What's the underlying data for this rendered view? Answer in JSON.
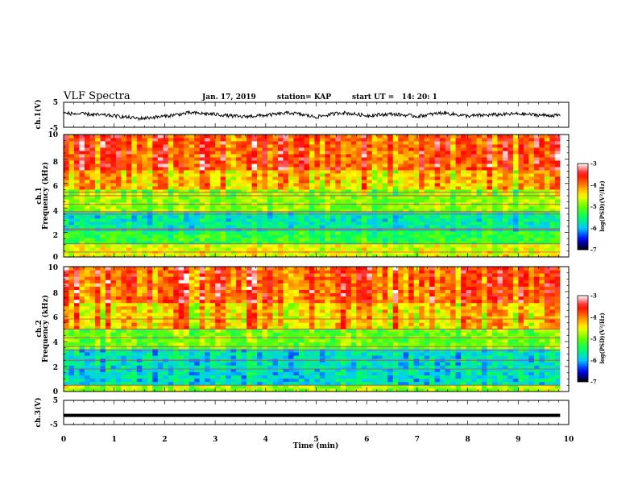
{
  "header": {
    "title": "VLF Spectra",
    "date": "Jan. 17, 2019",
    "station": "station= KAP",
    "start": "start UT =   14: 20: 1"
  },
  "chart_data": [
    {
      "type": "line",
      "panel": "ch1-waveform",
      "ylabel": "ch.1(V)",
      "ylim": [
        -5,
        5
      ],
      "xlim": [
        0,
        9.83
      ],
      "yticks": [
        "5",
        "-5"
      ],
      "x": [
        0,
        0.5,
        1.0,
        1.5,
        2.0,
        2.5,
        3.0,
        3.5,
        4.0,
        4.5,
        5.0,
        5.5,
        6.0,
        6.5,
        7.0,
        7.5,
        8.0,
        8.5,
        9.0,
        9.5,
        9.8
      ],
      "y": [
        0.6,
        0.2,
        -0.4,
        -1.5,
        -0.6,
        0.8,
        0.2,
        -0.8,
        -0.2,
        0.8,
        -0.9,
        0.9,
        -0.3,
        0.3,
        -0.6,
        0.8,
        -0.5,
        0.0,
        0.4,
        -0.2,
        -0.3
      ]
    },
    {
      "type": "heatmap",
      "panel": "ch1-spectrogram",
      "ylabel": "ch.1\nFrequency (kHz)",
      "ylim": [
        0,
        10
      ],
      "xlim": [
        0,
        9.83
      ],
      "yticks": [
        "0",
        "2",
        "4",
        "6",
        "8",
        "10"
      ],
      "colorbar": {
        "label": "log(PSD)(V²/Hz)",
        "range": [
          -7,
          -3
        ],
        "ticks": [
          "-3",
          "-4",
          "-5",
          "-6",
          "-7"
        ]
      },
      "bands_kHz": [
        {
          "from": 0,
          "to": 1.0,
          "level": -4.6
        },
        {
          "from": 1.0,
          "to": 2.2,
          "level": -5.3
        },
        {
          "from": 2.2,
          "to": 3.7,
          "level": -5.7
        },
        {
          "from": 3.7,
          "to": 5.5,
          "level": -4.9
        },
        {
          "from": 5.5,
          "to": 7.0,
          "level": -4.3
        },
        {
          "from": 7.0,
          "to": 10.0,
          "level": -3.8
        }
      ],
      "lines_kHz": [
        0.4,
        1.1,
        2.2,
        2.3,
        3.5,
        3.7,
        4.3,
        5.0,
        5.3
      ]
    },
    {
      "type": "heatmap",
      "panel": "ch2-spectrogram",
      "ylabel": "ch.2\nFrequency (kHz)",
      "ylim": [
        0,
        10
      ],
      "xlim": [
        0,
        9.83
      ],
      "yticks": [
        "0",
        "2",
        "4",
        "6",
        "8",
        "10"
      ],
      "colorbar": {
        "label": "log(PSD)(V²/Hz)",
        "range": [
          -7,
          -3
        ],
        "ticks": [
          "-3",
          "-4",
          "-5",
          "-6",
          "-7"
        ]
      },
      "bands_kHz": [
        {
          "from": 0,
          "to": 0.5,
          "level": -4.8
        },
        {
          "from": 0.5,
          "to": 3.5,
          "level": -5.8
        },
        {
          "from": 3.5,
          "to": 5.0,
          "level": -5.0
        },
        {
          "from": 5.0,
          "to": 7.0,
          "level": -4.3
        },
        {
          "from": 7.0,
          "to": 10.0,
          "level": -3.8
        }
      ],
      "lines_kHz": [
        0.5,
        1.8,
        2.5,
        3.3,
        3.6,
        4.3,
        5.0,
        5.8
      ]
    },
    {
      "type": "line",
      "panel": "ch3-waveform",
      "ylabel": "ch.3(V)",
      "ylim": [
        -5,
        5
      ],
      "xlim": [
        0,
        9.83
      ],
      "yticks": [
        "5",
        "-5"
      ],
      "x": [
        0,
        9.83
      ],
      "y": [
        -1.2,
        -1.2
      ]
    }
  ],
  "xaxis": {
    "label": "Time (min)",
    "range": [
      0,
      10
    ],
    "ticks": [
      "0",
      "1",
      "2",
      "3",
      "4",
      "5",
      "6",
      "7",
      "8",
      "9",
      "10"
    ]
  },
  "colors": {
    "colormap": [
      "#000000",
      "#0000ff",
      "#00c8ff",
      "#00ff64",
      "#64ff00",
      "#ffff00",
      "#ff8000",
      "#ff0000",
      "#ffffff"
    ]
  }
}
